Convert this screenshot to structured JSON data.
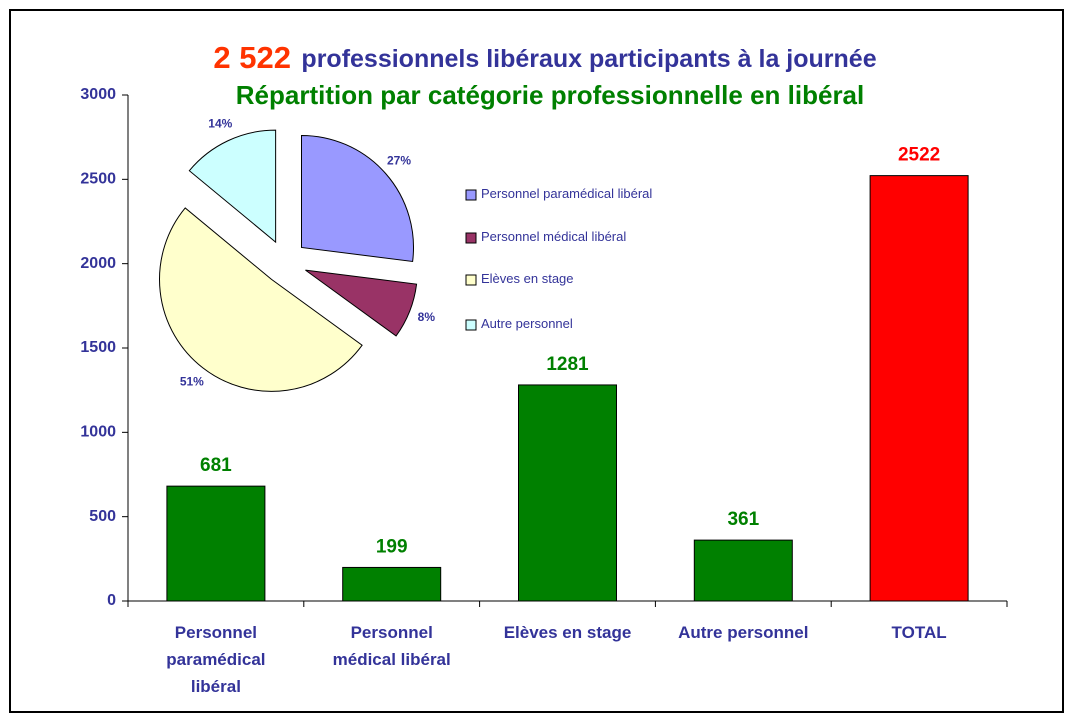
{
  "chart_data": [
    {
      "type": "bar",
      "title_number": "2 522",
      "title": "professionnels libéraux participants à la journée",
      "subtitle": "Répartition par catégorie professionnelle en libéral",
      "categories": [
        "Personnel paramédical libéral",
        "Personnel médical libéral",
        "Elèves en stage",
        "Autre personnel",
        "TOTAL"
      ],
      "values": [
        681,
        199,
        1281,
        361,
        2522
      ],
      "colors": [
        "#008000",
        "#008000",
        "#008000",
        "#008000",
        "#ff0000"
      ],
      "ylim": [
        0,
        3000
      ],
      "yticks": [
        0,
        500,
        1000,
        1500,
        2000,
        2500,
        3000
      ]
    },
    {
      "type": "pie",
      "categories": [
        "Personnel paramédical libéral",
        "Personnel médical libéral",
        "Elèves en stage",
        "Autre personnel"
      ],
      "values": [
        27,
        8,
        51,
        14
      ],
      "value_labels": [
        "27%",
        "8%",
        "51%",
        "14%"
      ],
      "colors": [
        "#9999ff",
        "#993366",
        "#ffffcc",
        "#ccffff"
      ],
      "legend": "right"
    }
  ]
}
